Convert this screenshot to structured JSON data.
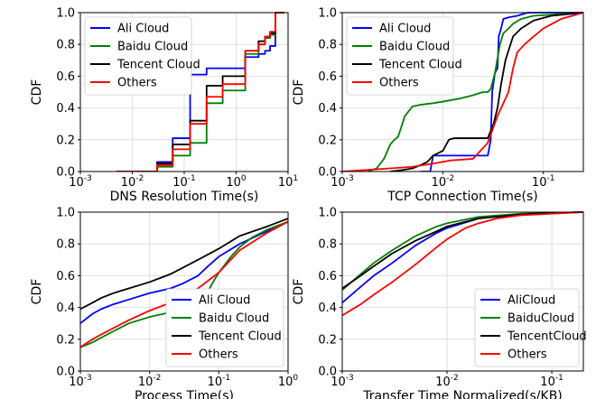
{
  "chart_data": [
    {
      "type": "line",
      "step": true,
      "xscale": "log",
      "xlim": [
        0.001,
        10
      ],
      "ylim": [
        0,
        1
      ],
      "xlabel": "DNS Resolution Time(s)",
      "ylabel": "CDF",
      "grid": true,
      "legend": "top-left",
      "xticks": [
        {
          "v": 0.001,
          "b": "10",
          "e": "-3"
        },
        {
          "v": 0.01,
          "b": "10",
          "e": "-2"
        },
        {
          "v": 0.1,
          "b": "10",
          "e": "-1"
        },
        {
          "v": 1,
          "b": "10",
          "e": "0"
        },
        {
          "v": 10,
          "b": "10",
          "e": "1"
        }
      ],
      "yticks": [
        "0.0",
        "0.2",
        "0.4",
        "0.6",
        "0.8",
        "1.0"
      ],
      "series": [
        {
          "name": "Ali Cloud",
          "color": "#0000ff",
          "x": [
            0.005,
            0.03,
            0.06,
            0.13,
            0.27,
            0.55,
            1.5,
            2.7,
            3.6,
            4.5,
            5.7,
            8.5
          ],
          "y": [
            0.0,
            0.06,
            0.21,
            0.61,
            0.65,
            0.65,
            0.72,
            0.74,
            0.76,
            0.79,
            1.0,
            1.0
          ]
        },
        {
          "name": "Baidu Cloud",
          "color": "#008000",
          "x": [
            0.005,
            0.03,
            0.06,
            0.13,
            0.27,
            0.55,
            1.5,
            2.7,
            3.6,
            4.5,
            5.7,
            8.5
          ],
          "y": [
            0.0,
            0.03,
            0.1,
            0.18,
            0.43,
            0.51,
            0.74,
            0.8,
            0.84,
            0.86,
            1.0,
            1.0
          ]
        },
        {
          "name": "Tencent Cloud",
          "color": "#000000",
          "x": [
            0.005,
            0.03,
            0.06,
            0.13,
            0.27,
            0.55,
            1.5,
            2.7,
            3.6,
            4.5,
            5.7,
            8.5
          ],
          "y": [
            0.0,
            0.05,
            0.17,
            0.32,
            0.54,
            0.6,
            0.76,
            0.82,
            0.85,
            0.87,
            1.0,
            1.0
          ]
        },
        {
          "name": "Others",
          "color": "#ff0000",
          "x": [
            0.005,
            0.03,
            0.06,
            0.13,
            0.27,
            0.55,
            1.5,
            2.7,
            3.6,
            4.5,
            5.7,
            8.5
          ],
          "y": [
            0.0,
            0.04,
            0.14,
            0.3,
            0.47,
            0.55,
            0.76,
            0.8,
            0.85,
            0.88,
            1.0,
            1.0
          ]
        }
      ]
    },
    {
      "type": "line",
      "xscale": "log",
      "xlim": [
        0.001,
        0.25
      ],
      "ylim": [
        0,
        1
      ],
      "xlabel": "TCP Connection Time(s)",
      "ylabel": "CDF",
      "grid": true,
      "legend": "top-left",
      "xticks": [
        {
          "v": 0.001,
          "b": "10",
          "e": "-3"
        },
        {
          "v": 0.01,
          "b": "10",
          "e": "-2"
        },
        {
          "v": 0.1,
          "b": "10",
          "e": "-1"
        }
      ],
      "yticks": [
        "0.0",
        "0.2",
        "0.4",
        "0.6",
        "0.8",
        "1.0"
      ],
      "series": [
        {
          "name": "Ali Cloud",
          "color": "#0000ff",
          "x": [
            0.006,
            0.0075,
            0.008,
            0.01,
            0.02,
            0.028,
            0.03,
            0.031,
            0.033,
            0.035,
            0.036,
            0.038,
            0.04,
            0.045,
            0.055,
            0.07,
            0.25
          ],
          "y": [
            0.0,
            0.0,
            0.1,
            0.1,
            0.1,
            0.1,
            0.2,
            0.5,
            0.62,
            0.65,
            0.85,
            0.9,
            0.96,
            0.97,
            0.98,
            1.0,
            1.0
          ]
        },
        {
          "name": "Baidu Cloud",
          "color": "#008000",
          "x": [
            0.0018,
            0.0022,
            0.0026,
            0.003,
            0.0033,
            0.0036,
            0.0042,
            0.005,
            0.006,
            0.008,
            0.01,
            0.015,
            0.02,
            0.025,
            0.028,
            0.03,
            0.033,
            0.037,
            0.04,
            0.045,
            0.05,
            0.06,
            0.08,
            0.25
          ],
          "y": [
            0.0,
            0.02,
            0.08,
            0.17,
            0.2,
            0.22,
            0.35,
            0.41,
            0.42,
            0.43,
            0.44,
            0.46,
            0.48,
            0.5,
            0.5,
            0.52,
            0.62,
            0.8,
            0.87,
            0.9,
            0.93,
            0.96,
            0.98,
            1.0
          ]
        },
        {
          "name": "Tencent Cloud",
          "color": "#000000",
          "x": [
            0.003,
            0.004,
            0.005,
            0.006,
            0.007,
            0.008,
            0.01,
            0.0115,
            0.013,
            0.015,
            0.02,
            0.028,
            0.032,
            0.035,
            0.038,
            0.042,
            0.046,
            0.05,
            0.06,
            0.08,
            0.12,
            0.25
          ],
          "y": [
            0.0,
            0.01,
            0.02,
            0.04,
            0.06,
            0.1,
            0.13,
            0.2,
            0.21,
            0.21,
            0.21,
            0.21,
            0.3,
            0.4,
            0.55,
            0.7,
            0.78,
            0.85,
            0.9,
            0.95,
            0.98,
            1.0
          ]
        },
        {
          "name": "Others",
          "color": "#ff0000",
          "x": [
            0.001,
            0.003,
            0.005,
            0.008,
            0.012,
            0.02,
            0.028,
            0.035,
            0.045,
            0.05,
            0.055,
            0.065,
            0.08,
            0.1,
            0.15,
            0.25
          ],
          "y": [
            0.0,
            0.02,
            0.03,
            0.05,
            0.07,
            0.08,
            0.18,
            0.35,
            0.5,
            0.65,
            0.75,
            0.8,
            0.85,
            0.9,
            0.96,
            1.0
          ]
        }
      ]
    },
    {
      "type": "line",
      "xscale": "log",
      "xlim": [
        0.001,
        1
      ],
      "ylim": [
        0,
        1
      ],
      "xlabel": "Process Time(s)",
      "ylabel": "CDF",
      "grid": true,
      "legend": "lower-right",
      "xticks": [
        {
          "v": 0.001,
          "b": "10",
          "e": "-3"
        },
        {
          "v": 0.01,
          "b": "10",
          "e": "-2"
        },
        {
          "v": 0.1,
          "b": "10",
          "e": "-1"
        },
        {
          "v": 1,
          "b": "10",
          "e": "0"
        }
      ],
      "yticks": [
        "0.0",
        "0.2",
        "0.4",
        "0.6",
        "0.8",
        "1.0"
      ],
      "series": [
        {
          "name": "Ali Cloud",
          "color": "#0000ff",
          "x": [
            0.001,
            0.0015,
            0.002,
            0.003,
            0.005,
            0.01,
            0.02,
            0.03,
            0.05,
            0.07,
            0.1,
            0.2,
            0.5,
            1
          ],
          "y": [
            0.3,
            0.36,
            0.39,
            0.42,
            0.45,
            0.49,
            0.52,
            0.55,
            0.6,
            0.66,
            0.72,
            0.8,
            0.88,
            0.94
          ]
        },
        {
          "name": "Baidu Cloud",
          "color": "#008000",
          "x": [
            0.001,
            0.0015,
            0.002,
            0.003,
            0.005,
            0.01,
            0.02,
            0.03,
            0.04,
            0.05,
            0.06,
            0.07,
            0.08,
            0.1,
            0.15,
            0.2,
            0.3,
            0.5,
            1
          ],
          "y": [
            0.15,
            0.18,
            0.21,
            0.25,
            0.3,
            0.34,
            0.37,
            0.39,
            0.4,
            0.43,
            0.46,
            0.5,
            0.55,
            0.62,
            0.72,
            0.78,
            0.84,
            0.89,
            0.94
          ]
        },
        {
          "name": "Tencent Cloud",
          "color": "#000000",
          "x": [
            0.001,
            0.0015,
            0.002,
            0.003,
            0.005,
            0.01,
            0.02,
            0.05,
            0.1,
            0.2,
            0.5,
            1
          ],
          "y": [
            0.39,
            0.43,
            0.46,
            0.49,
            0.52,
            0.56,
            0.61,
            0.7,
            0.77,
            0.85,
            0.91,
            0.96
          ]
        },
        {
          "name": "Others",
          "color": "#ff0000",
          "x": [
            0.001,
            0.0015,
            0.002,
            0.003,
            0.005,
            0.01,
            0.02,
            0.05,
            0.1,
            0.2,
            0.5,
            1
          ],
          "y": [
            0.15,
            0.2,
            0.23,
            0.27,
            0.32,
            0.38,
            0.43,
            0.52,
            0.62,
            0.76,
            0.87,
            0.94
          ]
        }
      ]
    },
    {
      "type": "line",
      "xscale": "log",
      "xlim": [
        0.001,
        0.2
      ],
      "ylim": [
        0,
        1
      ],
      "xlabel": "Transfer Time Normalized(s/KB)",
      "ylabel": "CDF",
      "grid": true,
      "legend": "lower-right",
      "xticks": [
        {
          "v": 0.001,
          "b": "10",
          "e": "-3"
        },
        {
          "v": 0.01,
          "b": "10",
          "e": "-2"
        },
        {
          "v": 0.1,
          "b": "10",
          "e": "-1"
        }
      ],
      "yticks": [
        "0.0",
        "0.2",
        "0.4",
        "0.6",
        "0.8",
        "1.0"
      ],
      "series": [
        {
          "name": "AliCloud",
          "color": "#0000ff",
          "x": [
            0.001,
            0.0015,
            0.002,
            0.003,
            0.005,
            0.008,
            0.01,
            0.02,
            0.05,
            0.1,
            0.2
          ],
          "y": [
            0.43,
            0.53,
            0.6,
            0.68,
            0.79,
            0.87,
            0.9,
            0.96,
            0.985,
            0.995,
            1.0
          ]
        },
        {
          "name": "BaiduCloud",
          "color": "#008000",
          "x": [
            0.001,
            0.0015,
            0.002,
            0.003,
            0.005,
            0.008,
            0.01,
            0.02,
            0.05,
            0.1,
            0.2
          ],
          "y": [
            0.51,
            0.61,
            0.68,
            0.76,
            0.85,
            0.91,
            0.93,
            0.97,
            0.99,
            0.995,
            1.0
          ]
        },
        {
          "name": "TencentCloud",
          "color": "#000000",
          "x": [
            0.001,
            0.0015,
            0.002,
            0.003,
            0.005,
            0.008,
            0.01,
            0.02,
            0.05,
            0.1,
            0.2
          ],
          "y": [
            0.52,
            0.6,
            0.66,
            0.74,
            0.82,
            0.88,
            0.91,
            0.96,
            0.985,
            0.995,
            1.0
          ]
        },
        {
          "name": "Others",
          "color": "#ff0000",
          "x": [
            0.001,
            0.0015,
            0.002,
            0.003,
            0.005,
            0.008,
            0.01,
            0.015,
            0.02,
            0.03,
            0.05,
            0.1,
            0.2
          ],
          "y": [
            0.35,
            0.42,
            0.48,
            0.56,
            0.67,
            0.78,
            0.83,
            0.9,
            0.93,
            0.96,
            0.98,
            0.99,
            1.0
          ]
        }
      ]
    }
  ]
}
